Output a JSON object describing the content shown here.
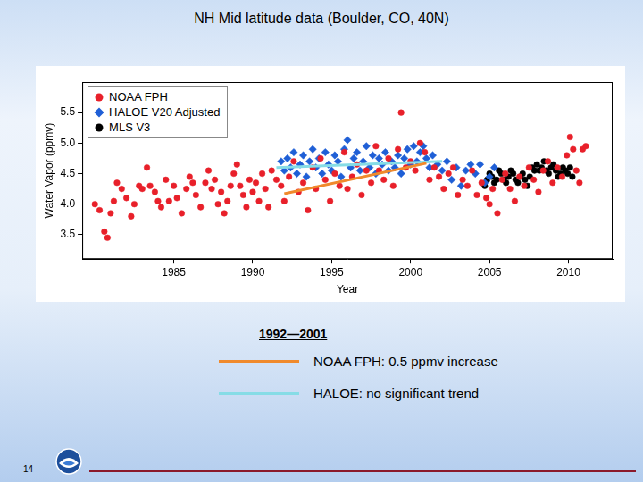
{
  "page": 14,
  "chart_data": {
    "type": "scatter",
    "title": "NH Mid latitude data (Boulder, CO, 40N)",
    "x_label": "Year",
    "y_label": "Water Vapor (ppmv)",
    "xlim": [
      1979.2,
      2012.8
    ],
    "xticks": [
      1985,
      1990,
      1995,
      2000,
      2005,
      2010
    ],
    "ylim": [
      3.1,
      6.0
    ],
    "yticks": [
      3.5,
      {
        "value": 4,
        "label": "4.0"
      },
      4.5,
      {
        "value": 5,
        "label": "5.0"
      },
      5.5
    ],
    "grid": false,
    "legend": "top-left",
    "annotation": "1992—2001",
    "series": [
      {
        "name": "NOAA FPH",
        "type": "scatter",
        "marker": "circle",
        "color": "#e8202a",
        "x": [
          1980.0,
          1980.3,
          1980.6,
          1980.8,
          1981.0,
          1981.2,
          1981.4,
          1981.7,
          1982.0,
          1982.3,
          1982.5,
          1982.8,
          1983.0,
          1983.3,
          1983.5,
          1983.8,
          1984.0,
          1984.2,
          1984.5,
          1984.7,
          1985.0,
          1985.2,
          1985.5,
          1985.8,
          1986.0,
          1986.2,
          1986.4,
          1986.7,
          1987.0,
          1987.2,
          1987.4,
          1987.6,
          1987.8,
          1988.0,
          1988.2,
          1988.4,
          1988.6,
          1988.8,
          1989.0,
          1989.2,
          1989.4,
          1989.6,
          1989.8,
          1990.0,
          1990.2,
          1990.4,
          1990.6,
          1990.8,
          1991.0,
          1991.2,
          1991.5,
          1991.8,
          1992.0,
          1992.3,
          1992.6,
          1992.9,
          1993.2,
          1993.5,
          1993.8,
          1994.0,
          1994.3,
          1994.6,
          1994.9,
          1995.2,
          1995.5,
          1995.8,
          1996.0,
          1996.3,
          1996.6,
          1996.9,
          1997.2,
          1997.5,
          1997.8,
          1998.0,
          1998.3,
          1998.6,
          1998.9,
          1999.2,
          1999.4,
          1999.7,
          2000.0,
          2000.3,
          2000.6,
          2000.9,
          2001.2,
          2001.5,
          2001.8,
          2002.1,
          2002.4,
          2002.7,
          2003.0,
          2003.3,
          2003.6,
          2003.9,
          2004.2,
          2004.5,
          2004.8,
          2005.0,
          2005.2,
          2005.5,
          2005.8,
          2006.0,
          2006.3,
          2006.6,
          2006.9,
          2007.2,
          2007.5,
          2007.8,
          2008.1,
          2008.4,
          2008.7,
          2009.0,
          2009.3,
          2009.6,
          2009.9,
          2010.1,
          2010.3,
          2010.5,
          2010.7,
          2010.9,
          2011.1
        ],
        "values": [
          4.0,
          3.9,
          3.55,
          3.45,
          3.85,
          4.05,
          4.35,
          4.25,
          4.1,
          3.8,
          4.0,
          4.3,
          4.25,
          4.6,
          4.3,
          4.2,
          4.05,
          3.95,
          4.4,
          4.05,
          4.3,
          4.1,
          3.85,
          4.25,
          4.45,
          4.35,
          4.15,
          3.95,
          4.35,
          4.55,
          4.25,
          4.4,
          4.0,
          4.2,
          3.85,
          4.05,
          4.3,
          4.5,
          4.65,
          4.3,
          4.15,
          3.95,
          4.4,
          4.2,
          4.35,
          4.05,
          4.5,
          4.25,
          3.95,
          4.55,
          4.4,
          4.3,
          4.05,
          4.45,
          4.7,
          4.2,
          4.35,
          3.9,
          4.6,
          4.25,
          4.75,
          4.4,
          4.05,
          4.5,
          4.3,
          4.85,
          4.25,
          4.45,
          4.65,
          4.15,
          4.55,
          4.35,
          4.95,
          4.55,
          4.4,
          4.75,
          4.3,
          4.9,
          5.5,
          4.6,
          4.7,
          4.55,
          5.0,
          4.85,
          4.4,
          4.6,
          4.45,
          4.25,
          4.5,
          4.6,
          4.15,
          4.4,
          4.3,
          4.55,
          4.15,
          4.35,
          4.1,
          4.0,
          4.25,
          3.85,
          4.4,
          4.5,
          4.25,
          4.05,
          4.45,
          4.3,
          4.6,
          4.4,
          4.2,
          4.55,
          4.7,
          4.35,
          4.6,
          4.45,
          4.8,
          5.1,
          4.9,
          4.55,
          4.35,
          4.9,
          4.95
        ]
      },
      {
        "name": "HALOE V20 Adjusted",
        "type": "scatter",
        "marker": "diamond",
        "color": "#1f5fd6",
        "x": [
          1991.8,
          1992.0,
          1992.2,
          1992.4,
          1992.6,
          1992.8,
          1993.0,
          1993.2,
          1993.4,
          1993.6,
          1993.8,
          1994.0,
          1994.2,
          1994.4,
          1994.6,
          1994.8,
          1995.0,
          1995.2,
          1995.4,
          1995.6,
          1995.8,
          1996.0,
          1996.2,
          1996.4,
          1996.6,
          1996.8,
          1997.0,
          1997.2,
          1997.4,
          1997.6,
          1997.8,
          1998.0,
          1998.2,
          1998.4,
          1998.6,
          1998.8,
          1999.0,
          1999.2,
          1999.4,
          1999.6,
          1999.8,
          2000.0,
          2000.2,
          2000.4,
          2000.6,
          2000.8,
          2001.0,
          2001.2,
          2001.4,
          2001.7,
          2002.0,
          2002.3,
          2002.6,
          2002.9,
          2003.2,
          2003.5,
          2003.8,
          2004.1,
          2004.4,
          2004.7,
          2005.0,
          2005.3
        ],
        "values": [
          4.7,
          4.55,
          4.75,
          4.6,
          4.85,
          4.5,
          4.65,
          4.8,
          4.45,
          4.7,
          4.9,
          4.6,
          4.75,
          4.5,
          4.85,
          4.65,
          4.55,
          4.8,
          4.7,
          4.45,
          4.9,
          5.05,
          4.6,
          4.75,
          4.85,
          4.55,
          4.7,
          4.95,
          4.6,
          4.8,
          4.5,
          4.75,
          4.65,
          4.85,
          4.55,
          4.7,
          4.6,
          4.8,
          4.5,
          4.75,
          4.9,
          4.65,
          4.95,
          4.7,
          4.85,
          4.95,
          4.75,
          4.6,
          4.8,
          4.65,
          4.55,
          4.7,
          4.4,
          4.6,
          4.3,
          4.55,
          4.65,
          4.5,
          4.65,
          4.35,
          4.45,
          4.6
        ]
      },
      {
        "name": "MLS V3",
        "type": "scatter",
        "marker": "circle",
        "color": "#000000",
        "x": [
          2004.7,
          2004.85,
          2005.0,
          2005.15,
          2005.3,
          2005.45,
          2005.6,
          2005.75,
          2005.9,
          2006.05,
          2006.2,
          2006.35,
          2006.5,
          2006.65,
          2006.8,
          2006.95,
          2007.1,
          2007.25,
          2007.4,
          2007.55,
          2007.7,
          2007.85,
          2008.0,
          2008.15,
          2008.3,
          2008.45,
          2008.6,
          2008.75,
          2008.9,
          2009.05,
          2009.2,
          2009.35,
          2009.5,
          2009.65,
          2009.8,
          2009.95,
          2010.1,
          2010.25
        ],
        "values": [
          4.3,
          4.4,
          4.5,
          4.45,
          4.35,
          4.4,
          4.55,
          4.5,
          4.4,
          4.35,
          4.45,
          4.55,
          4.5,
          4.4,
          4.35,
          4.45,
          4.5,
          4.4,
          4.3,
          4.45,
          4.6,
          4.55,
          4.65,
          4.55,
          4.6,
          4.7,
          4.55,
          4.5,
          4.6,
          4.65,
          4.55,
          4.45,
          4.5,
          4.6,
          4.55,
          4.5,
          4.6,
          4.45
        ]
      },
      {
        "name": "NOAA FPH: 0.5 ppmv increase",
        "type": "line",
        "marker": "none",
        "line_style": "solid",
        "color": "#f08a2c",
        "x": [
          1992,
          2001
        ],
        "values": [
          4.17,
          4.67
        ]
      },
      {
        "name": "HALOE: no significant trend",
        "type": "line",
        "marker": "none",
        "line_style": "solid",
        "color": "#86dce6",
        "x": [
          1991.5,
          2002
        ],
        "values": [
          4.6,
          4.7
        ]
      }
    ]
  }
}
